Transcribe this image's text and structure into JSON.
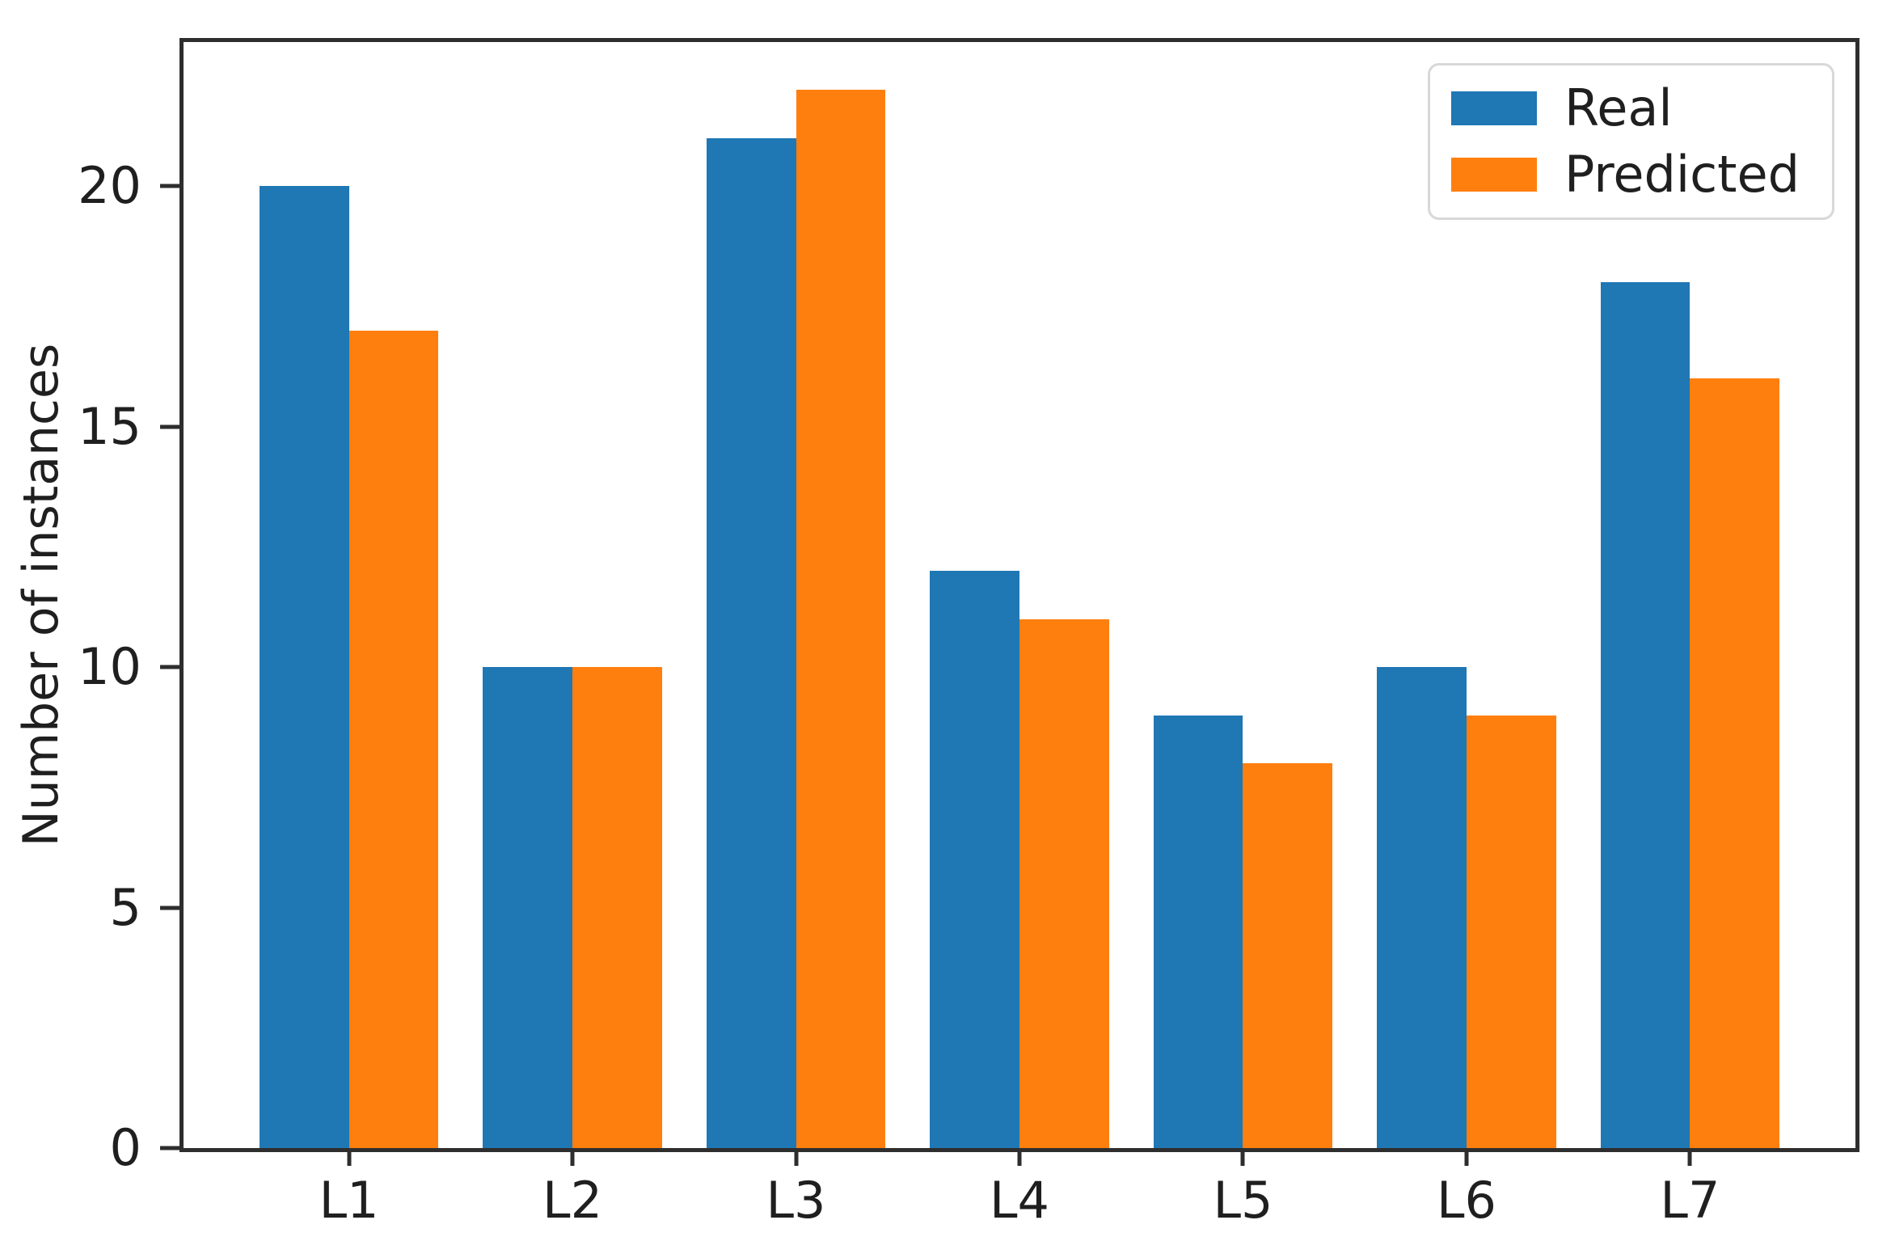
{
  "chart_data": {
    "type": "bar",
    "title": "",
    "categories": [
      "L1",
      "L2",
      "L3",
      "L4",
      "L5",
      "L6",
      "L7"
    ],
    "series": [
      {
        "name": "Real",
        "color": "#1f77b4",
        "values": [
          20,
          10,
          21,
          12,
          9,
          10,
          18
        ]
      },
      {
        "name": "Predicted",
        "color": "#ff7f0e",
        "values": [
          17,
          10,
          22,
          11,
          8,
          9,
          16
        ]
      }
    ],
    "xlabel": "",
    "ylabel": "Number of instances",
    "yticks": [
      0,
      5,
      10,
      15,
      20
    ],
    "ylim": [
      0,
      23
    ],
    "bar_width": 0.4,
    "grid": false,
    "legend_position": "upper right",
    "colors": {
      "axis": "#2e2e2e",
      "text": "#1f1f1f",
      "legend_border": "#d8d8d8",
      "background": "#ffffff"
    }
  }
}
